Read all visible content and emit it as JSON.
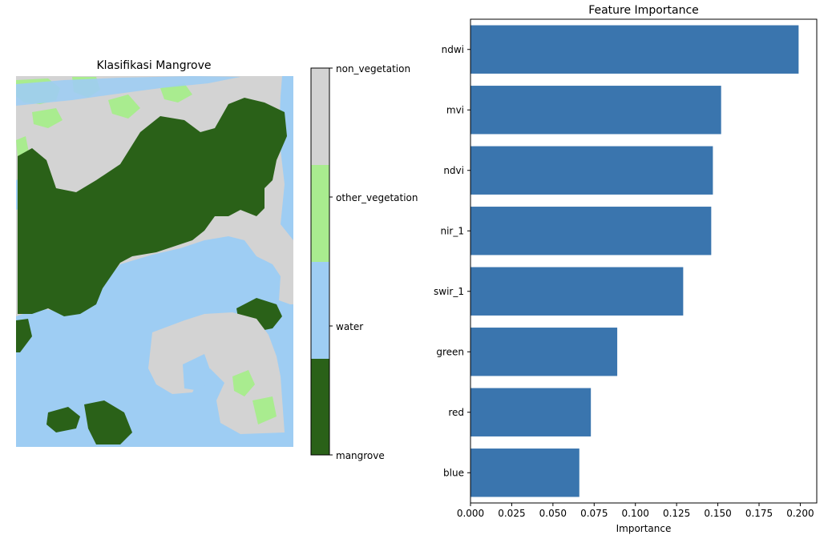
{
  "map_panel": {
    "title": "Klasifikasi Mangrove",
    "colorbar": {
      "classes": [
        {
          "label": "mangrove",
          "color": "#2a6118"
        },
        {
          "label": "water",
          "color": "#9ecdf3"
        },
        {
          "label": "other_vegetation",
          "color": "#a9ec8f"
        },
        {
          "label": "non_vegetation",
          "color": "#d3d3d3"
        }
      ],
      "top_label": "non_vegetation",
      "bottom_label": "mangrove"
    }
  },
  "chart_data": {
    "type": "bar",
    "orientation": "horizontal",
    "title": "Feature Importance",
    "xlabel": "Importance",
    "ylabel": "",
    "categories": [
      "ndwi",
      "mvi",
      "ndvi",
      "nir_1",
      "swir_1",
      "green",
      "red",
      "blue"
    ],
    "values": [
      0.199,
      0.152,
      0.147,
      0.146,
      0.129,
      0.089,
      0.073,
      0.066
    ],
    "xlim": [
      0,
      0.21
    ],
    "xticks": [
      "0.000",
      "0.025",
      "0.050",
      "0.075",
      "0.100",
      "0.125",
      "0.150",
      "0.175",
      "0.200"
    ],
    "xtick_values": [
      0,
      0.025,
      0.05,
      0.075,
      0.1,
      0.125,
      0.15,
      0.175,
      0.2
    ],
    "bar_color": "#3a75ae",
    "grid": false
  }
}
